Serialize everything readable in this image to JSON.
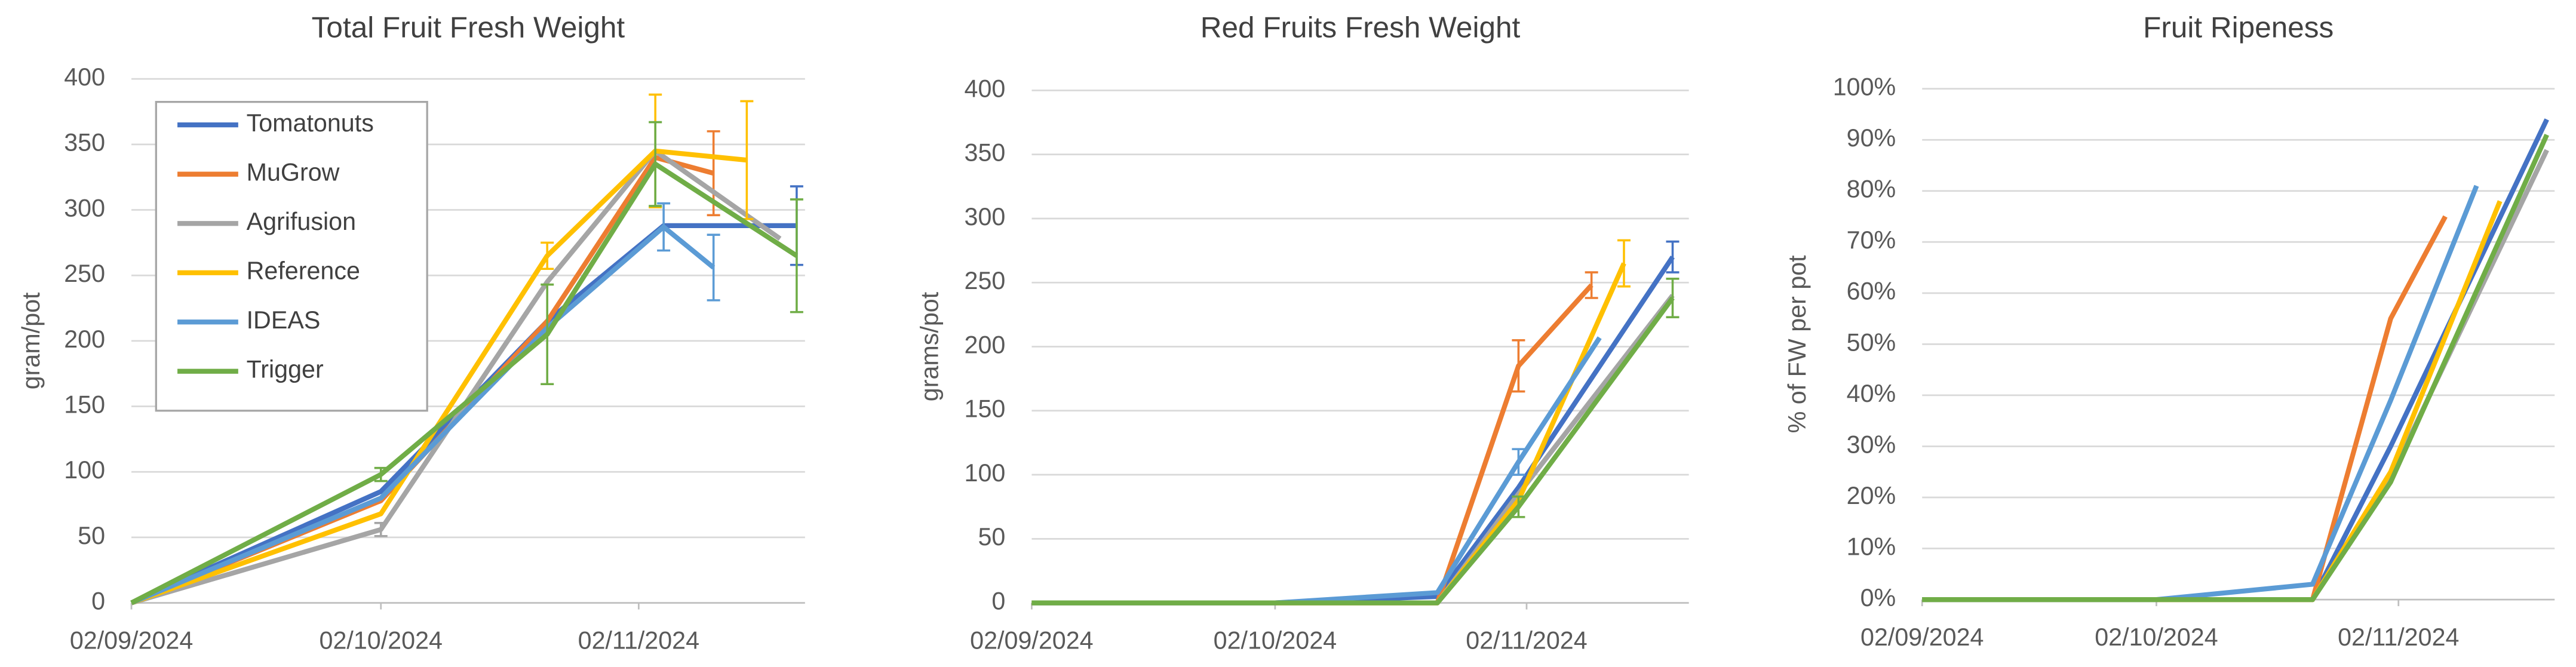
{
  "chart_data": [
    {
      "type": "line",
      "title": "Total Fruit Fresh Weight",
      "y_label": "gram/pot",
      "xlim": [
        "2024-09-02",
        "2024-11-22"
      ],
      "xticks": [
        {
          "value": "2024-09-02",
          "label": "02/09/2024"
        },
        {
          "value": "2024-10-02",
          "label": "02/10/2024"
        },
        {
          "value": "2024-11-02",
          "label": "02/11/2024"
        }
      ],
      "ylim": [
        0,
        400
      ],
      "yticks": [
        0,
        50,
        100,
        150,
        200,
        250,
        300,
        350,
        400
      ],
      "grid": true,
      "legend": "top-left",
      "series": [
        {
          "name": "Tomatonuts",
          "color": "#4472c4",
          "x": [
            "2024-09-02",
            "2024-10-02",
            "2024-10-22",
            "2024-11-05",
            "2024-11-21"
          ],
          "values": [
            0,
            85,
            215,
            288,
            288
          ],
          "errors": [
            null,
            null,
            null,
            null,
            30
          ]
        },
        {
          "name": "MuGrow",
          "color": "#ed7d31",
          "x": [
            "2024-09-02",
            "2024-10-02",
            "2024-10-22",
            "2024-11-04",
            "2024-11-11"
          ],
          "values": [
            0,
            78,
            215,
            340,
            328
          ],
          "errors": [
            null,
            null,
            null,
            null,
            32
          ]
        },
        {
          "name": "Agrifusion",
          "color": "#a5a5a5",
          "x": [
            "2024-09-02",
            "2024-10-02",
            "2024-10-22",
            "2024-11-04",
            "2024-11-19"
          ],
          "values": [
            0,
            56,
            245,
            345,
            278
          ],
          "errors": [
            null,
            5,
            null,
            null,
            null
          ]
        },
        {
          "name": "Reference",
          "color": "#ffc000",
          "x": [
            "2024-09-02",
            "2024-10-02",
            "2024-10-22",
            "2024-11-04",
            "2024-11-15"
          ],
          "values": [
            0,
            68,
            265,
            345,
            338
          ],
          "errors": [
            null,
            null,
            10,
            43,
            45
          ]
        },
        {
          "name": "IDEAS",
          "color": "#5b9bd5",
          "x": [
            "2024-09-02",
            "2024-10-02",
            "2024-10-22",
            "2024-11-05",
            "2024-11-11"
          ],
          "values": [
            0,
            80,
            210,
            287,
            256
          ],
          "errors": [
            null,
            null,
            null,
            18,
            25
          ]
        },
        {
          "name": "Trigger",
          "color": "#70ad47",
          "x": [
            "2024-09-02",
            "2024-10-02",
            "2024-10-22",
            "2024-11-04",
            "2024-11-21"
          ],
          "values": [
            0,
            98,
            205,
            335,
            265
          ],
          "errors": [
            null,
            5,
            38,
            32,
            43
          ]
        }
      ]
    },
    {
      "type": "line",
      "title": "Red Fruits Fresh Weight",
      "y_label": "grams/pot",
      "xlim": [
        "2024-09-02",
        "2024-11-22"
      ],
      "xticks": [
        {
          "value": "2024-09-02",
          "label": "02/09/2024"
        },
        {
          "value": "2024-10-02",
          "label": "02/10/2024"
        },
        {
          "value": "2024-11-02",
          "label": "02/11/2024"
        }
      ],
      "ylim": [
        0,
        400
      ],
      "yticks": [
        0,
        50,
        100,
        150,
        200,
        250,
        300,
        350,
        400
      ],
      "grid": true,
      "series": [
        {
          "color": "#4472c4",
          "x": [
            "2024-09-02",
            "2024-10-02",
            "2024-10-22",
            "2024-11-01",
            "2024-11-20"
          ],
          "values": [
            0,
            0,
            5,
            90,
            270
          ],
          "errors": [
            null,
            null,
            null,
            null,
            12
          ]
        },
        {
          "color": "#ed7d31",
          "x": [
            "2024-09-02",
            "2024-10-02",
            "2024-10-22",
            "2024-11-01",
            "2024-11-10"
          ],
          "values": [
            0,
            0,
            0,
            185,
            248
          ],
          "errors": [
            null,
            null,
            null,
            20,
            10
          ]
        },
        {
          "color": "#a5a5a5",
          "x": [
            "2024-09-02",
            "2024-10-02",
            "2024-10-22",
            "2024-11-01",
            "2024-11-20"
          ],
          "values": [
            0,
            0,
            0,
            85,
            240
          ],
          "errors": [
            null,
            null,
            null,
            null,
            null
          ]
        },
        {
          "color": "#ffc000",
          "x": [
            "2024-09-02",
            "2024-10-02",
            "2024-10-22",
            "2024-11-01",
            "2024-11-14"
          ],
          "values": [
            0,
            0,
            0,
            80,
            265
          ],
          "errors": [
            null,
            null,
            null,
            null,
            18
          ]
        },
        {
          "color": "#5b9bd5",
          "x": [
            "2024-09-02",
            "2024-10-02",
            "2024-10-22",
            "2024-11-01",
            "2024-11-11"
          ],
          "values": [
            0,
            0,
            8,
            110,
            207
          ],
          "errors": [
            null,
            null,
            null,
            10,
            null
          ]
        },
        {
          "color": "#70ad47",
          "x": [
            "2024-09-02",
            "2024-10-02",
            "2024-10-22",
            "2024-11-01",
            "2024-11-20"
          ],
          "values": [
            0,
            0,
            0,
            75,
            238
          ],
          "errors": [
            null,
            null,
            null,
            8,
            15
          ]
        }
      ]
    },
    {
      "type": "line",
      "title": "Fruit Ripeness",
      "y_label": "% of FW per pot",
      "xlim": [
        "2024-09-02",
        "2024-11-22"
      ],
      "xticks": [
        {
          "value": "2024-09-02",
          "label": "02/09/2024"
        },
        {
          "value": "2024-10-02",
          "label": "02/10/2024"
        },
        {
          "value": "2024-11-02",
          "label": "02/11/2024"
        }
      ],
      "ylim": [
        0,
        100
      ],
      "yticks": [
        {
          "value": 0,
          "label": "0%"
        },
        {
          "value": 10,
          "label": "10%"
        },
        {
          "value": 20,
          "label": "20%"
        },
        {
          "value": 30,
          "label": "30%"
        },
        {
          "value": 40,
          "label": "40%"
        },
        {
          "value": 50,
          "label": "50%"
        },
        {
          "value": 60,
          "label": "60%"
        },
        {
          "value": 70,
          "label": "70%"
        },
        {
          "value": 80,
          "label": "80%"
        },
        {
          "value": 90,
          "label": "90%"
        },
        {
          "value": 100,
          "label": "100%"
        }
      ],
      "grid": true,
      "series": [
        {
          "color": "#4472c4",
          "x": [
            "2024-09-02",
            "2024-10-02",
            "2024-10-22",
            "2024-11-01",
            "2024-11-21"
          ],
          "values": [
            0,
            0,
            0,
            30,
            94
          ]
        },
        {
          "color": "#ed7d31",
          "x": [
            "2024-09-02",
            "2024-10-02",
            "2024-10-22",
            "2024-11-01",
            "2024-11-08"
          ],
          "values": [
            0,
            0,
            0,
            55,
            75
          ]
        },
        {
          "color": "#a5a5a5",
          "x": [
            "2024-09-02",
            "2024-10-02",
            "2024-10-22",
            "2024-11-01",
            "2024-11-21"
          ],
          "values": [
            0,
            0,
            0,
            24,
            88
          ]
        },
        {
          "color": "#ffc000",
          "x": [
            "2024-09-02",
            "2024-10-02",
            "2024-10-22",
            "2024-11-01",
            "2024-11-15"
          ],
          "values": [
            0,
            0,
            0,
            25,
            78
          ]
        },
        {
          "color": "#5b9bd5",
          "x": [
            "2024-09-02",
            "2024-10-02",
            "2024-10-22",
            "2024-11-01",
            "2024-11-12"
          ],
          "values": [
            0,
            0,
            3,
            39,
            81
          ]
        },
        {
          "color": "#70ad47",
          "x": [
            "2024-09-02",
            "2024-10-02",
            "2024-10-22",
            "2024-11-01",
            "2024-11-21"
          ],
          "values": [
            0,
            0,
            0,
            23,
            91
          ]
        }
      ]
    }
  ]
}
